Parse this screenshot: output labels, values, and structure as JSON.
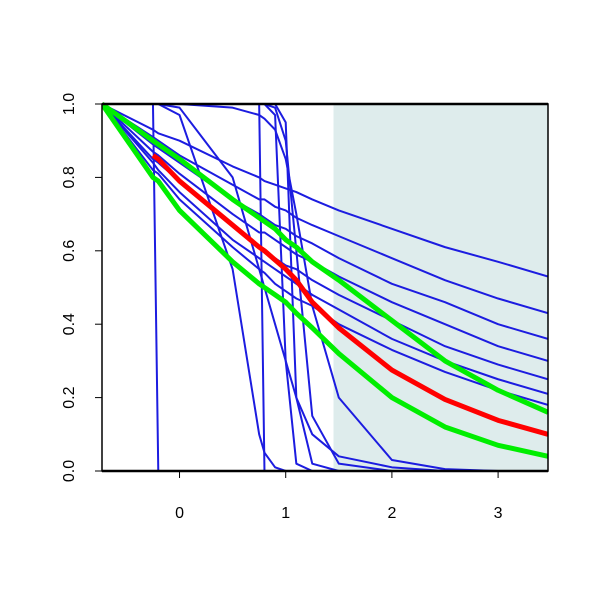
{
  "chart_data": {
    "type": "line",
    "x": [
      -0.73,
      -0.25,
      -0.2,
      0,
      0.5,
      0.75,
      0.8,
      0.9,
      1,
      1.1,
      1.25,
      1.5,
      2,
      2.5,
      3,
      3.47
    ],
    "xlim": [
      -0.73,
      3.47
    ],
    "ylim": [
      0,
      1
    ],
    "xticks": [
      0,
      1,
      2,
      3
    ],
    "yticks": [
      {
        "value": 0,
        "label": "0.0"
      },
      0.2,
      0.4,
      0.6,
      0.8,
      {
        "value": 1,
        "label": "1.0"
      }
    ],
    "shade": {
      "xlim": [
        1.45,
        3.47
      ],
      "color": "#deecec"
    },
    "series": [
      {
        "color": "#1c1ce0",
        "values": [
          1,
          0.93,
          0.92,
          0.9,
          0.83,
          0.8,
          0.79,
          0.78,
          0.77,
          0.76,
          0.74,
          0.71,
          0.66,
          0.61,
          0.57,
          0.53
        ]
      },
      {
        "color": "#1c1ce0",
        "values": [
          1,
          0.91,
          0.9,
          0.86,
          0.78,
          0.74,
          0.74,
          0.72,
          0.71,
          0.69,
          0.67,
          0.64,
          0.58,
          0.52,
          0.47,
          0.43
        ]
      },
      {
        "color": "#1c1ce0",
        "values": [
          1,
          0.89,
          0.88,
          0.84,
          0.74,
          0.7,
          0.69,
          0.67,
          0.66,
          0.64,
          0.62,
          0.58,
          0.51,
          0.46,
          0.4,
          0.36
        ]
      },
      {
        "color": "#1c1ce0",
        "values": [
          1,
          0.87,
          0.86,
          0.81,
          0.7,
          0.65,
          0.65,
          0.63,
          0.61,
          0.59,
          0.57,
          0.53,
          0.46,
          0.4,
          0.34,
          0.3
        ]
      },
      {
        "color": "#1c1ce0",
        "values": [
          1,
          0.85,
          0.84,
          0.79,
          0.67,
          0.61,
          0.6,
          0.58,
          0.56,
          0.55,
          0.52,
          0.48,
          0.41,
          0.34,
          0.29,
          0.25
        ]
      },
      {
        "color": "#1c1ce0",
        "values": [
          1,
          0.84,
          0.82,
          0.76,
          0.63,
          0.58,
          0.57,
          0.55,
          0.53,
          0.51,
          0.48,
          0.44,
          0.36,
          0.3,
          0.25,
          0.21
        ]
      },
      {
        "color": "#1c1ce0",
        "values": [
          1,
          0.82,
          0.81,
          0.74,
          0.61,
          0.55,
          0.54,
          0.51,
          0.49,
          0.47,
          0.45,
          0.4,
          0.33,
          0.27,
          0.22,
          0.18
        ]
      },
      {
        "color": "#1c1ce0",
        "values": [
          1,
          1,
          0,
          0,
          0,
          0,
          0,
          0,
          0,
          0,
          0,
          0,
          0,
          0,
          0,
          0
        ]
      },
      {
        "color": "#1c1ce0",
        "values": [
          1,
          1,
          1,
          1,
          1,
          1,
          0,
          0,
          0,
          0,
          0,
          0,
          0,
          0,
          0,
          0
        ]
      },
      {
        "color": "#1c1ce0",
        "values": [
          1,
          1,
          1,
          0.97,
          0.55,
          0.1,
          0.05,
          0.01,
          0,
          0,
          0,
          0,
          0,
          0,
          0,
          0
        ]
      },
      {
        "color": "#1c1ce0",
        "values": [
          1,
          1,
          1,
          1,
          1,
          1,
          1,
          0.97,
          0.3,
          0.02,
          0,
          0,
          0,
          0,
          0,
          0
        ]
      },
      {
        "color": "#1c1ce0",
        "values": [
          1,
          1,
          1,
          1,
          1,
          1,
          1,
          1,
          0.95,
          0.2,
          0.02,
          0,
          0,
          0,
          0,
          0
        ]
      },
      {
        "color": "#1c1ce0",
        "values": [
          1,
          1,
          1,
          1,
          0.99,
          0.97,
          0.96,
          0.93,
          0.85,
          0.7,
          0.45,
          0.2,
          0.03,
          0.005,
          0,
          0
        ]
      },
      {
        "color": "#1c1ce0",
        "values": [
          1,
          1,
          1,
          0.99,
          0.8,
          0.55,
          0.5,
          0.4,
          0.3,
          0.2,
          0.1,
          0.04,
          0.01,
          0,
          0,
          0
        ]
      },
      {
        "color": "#1c1ce0",
        "values": [
          1,
          1,
          1,
          1,
          1,
          1,
          1,
          0.99,
          0.9,
          0.6,
          0.15,
          0.02,
          0,
          0,
          0,
          0
        ]
      },
      {
        "color": "#00ee00",
        "emphasis": true,
        "values": [
          1,
          0.8,
          0.79,
          0.71,
          0.57,
          0.51,
          0.5,
          0.48,
          0.46,
          0.43,
          0.39,
          0.32,
          0.2,
          0.12,
          0.07,
          0.04
        ]
      },
      {
        "color": "#00ee00",
        "emphasis": true,
        "values": [
          1,
          0.9,
          0.89,
          0.85,
          0.74,
          0.69,
          0.68,
          0.66,
          0.63,
          0.61,
          0.57,
          0.52,
          0.41,
          0.3,
          0.22,
          0.16
        ]
      },
      {
        "color": "#ff0000",
        "emphasis": true,
        "values": [
          null,
          0.86,
          0.85,
          0.79,
          0.67,
          0.61,
          0.6,
          0.575,
          0.55,
          0.52,
          0.46,
          0.39,
          0.275,
          0.195,
          0.138,
          0.1
        ]
      }
    ]
  }
}
